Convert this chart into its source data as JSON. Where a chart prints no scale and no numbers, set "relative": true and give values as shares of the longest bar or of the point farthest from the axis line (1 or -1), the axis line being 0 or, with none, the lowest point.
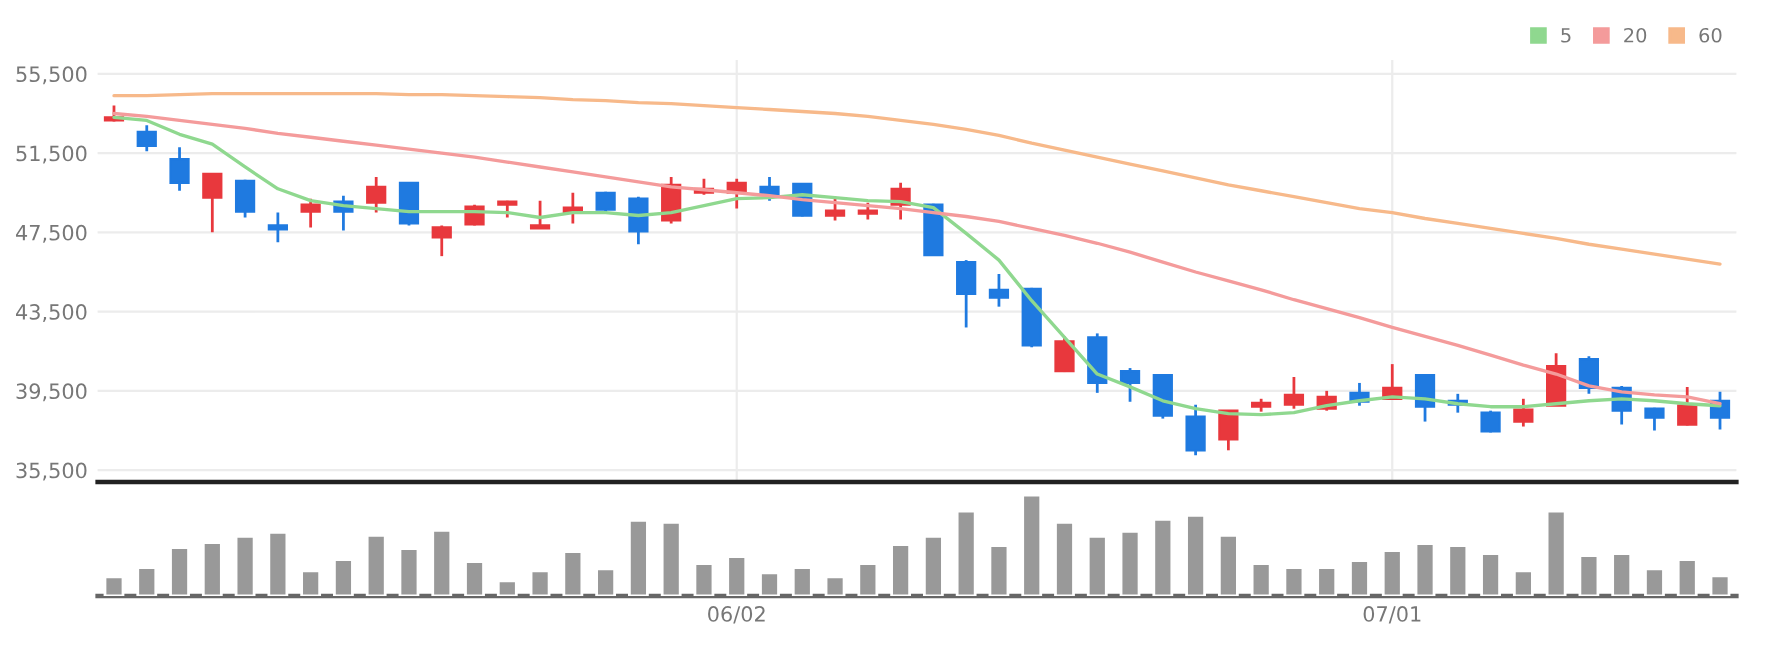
{
  "chart_data": [
    {
      "type": "candlestick",
      "categories": [
        null,
        null,
        null,
        null,
        null,
        null,
        null,
        null,
        null,
        null,
        null,
        null,
        null,
        null,
        null,
        null,
        null,
        null,
        null,
        null,
        null,
        null,
        null,
        null,
        null,
        null,
        null,
        null,
        null,
        null,
        null,
        null,
        null,
        null,
        null,
        null,
        null,
        null,
        null,
        null,
        null,
        null,
        null,
        null,
        null,
        null,
        null,
        null,
        null,
        null
      ],
      "ohlc": [
        [
          53150,
          53900,
          53100,
          53300
        ],
        [
          52570,
          52910,
          51600,
          51870
        ],
        [
          51200,
          51800,
          49600,
          50000
        ],
        [
          49250,
          50450,
          47500,
          50450
        ],
        [
          50100,
          50150,
          48250,
          48550
        ],
        [
          47850,
          48500,
          47000,
          47650
        ],
        [
          48550,
          49200,
          47750,
          48900
        ],
        [
          49050,
          49350,
          47600,
          48550
        ],
        [
          49000,
          50300,
          48500,
          49800
        ],
        [
          50000,
          50000,
          47850,
          47950
        ],
        [
          47250,
          47850,
          46300,
          47750
        ],
        [
          47900,
          48900,
          47850,
          48800
        ],
        [
          48900,
          49100,
          48250,
          49050
        ],
        [
          47700,
          49100,
          47700,
          47850
        ],
        [
          48500,
          49500,
          47950,
          48750
        ],
        [
          49500,
          49550,
          48500,
          48650
        ],
        [
          49200,
          49300,
          46900,
          47550
        ],
        [
          48100,
          50300,
          47950,
          49900
        ],
        [
          49500,
          50200,
          49400,
          49700
        ],
        [
          49500,
          50200,
          48700,
          50000
        ],
        [
          49800,
          50300,
          49100,
          49400
        ],
        [
          49950,
          49950,
          48300,
          48350
        ],
        [
          48350,
          49200,
          48100,
          48600
        ],
        [
          48450,
          49000,
          48150,
          48600
        ],
        [
          48900,
          50000,
          48150,
          49700
        ],
        [
          48900,
          48950,
          46350,
          46350
        ],
        [
          46000,
          46100,
          42700,
          44400
        ],
        [
          44600,
          45400,
          43750,
          44200
        ],
        [
          44650,
          44700,
          41700,
          41800
        ],
        [
          40500,
          42250,
          40450,
          42000
        ],
        [
          42200,
          42400,
          39400,
          39900
        ],
        [
          40500,
          40650,
          38950,
          39900
        ],
        [
          40300,
          40350,
          38100,
          38250
        ],
        [
          38200,
          38800,
          36250,
          36500
        ],
        [
          37050,
          38500,
          36500,
          38500
        ],
        [
          38700,
          39100,
          38450,
          38900
        ],
        [
          38800,
          40200,
          38600,
          39300
        ],
        [
          38600,
          39500,
          38500,
          39200
        ],
        [
          39400,
          39900,
          38750,
          38950
        ],
        [
          39100,
          40850,
          39100,
          39650
        ],
        [
          40300,
          40300,
          37950,
          38700
        ],
        [
          39000,
          39350,
          38400,
          38800
        ],
        [
          38400,
          38500,
          37400,
          37450
        ],
        [
          37950,
          39100,
          37700,
          38550
        ],
        [
          38750,
          41400,
          38750,
          40750
        ],
        [
          41100,
          41250,
          39350,
          39650
        ],
        [
          39650,
          39750,
          37800,
          38500
        ],
        [
          38600,
          38650,
          37500,
          38150
        ],
        [
          37800,
          39700,
          37750,
          38750
        ],
        [
          39000,
          39450,
          37550,
          38150
        ]
      ],
      "colors": [
        "#e8383d",
        "#1f7ae0",
        "#1f7ae0",
        "#e8383d",
        "#1f7ae0",
        "#1f7ae0",
        "#e8383d",
        "#1f7ae0",
        "#e8383d",
        "#1f7ae0",
        "#e8383d",
        "#e8383d",
        "#e8383d",
        "#e8383d",
        "#e8383d",
        "#1f7ae0",
        "#1f7ae0",
        "#e8383d",
        "#e8383d",
        "#e8383d",
        "#1f7ae0",
        "#1f7ae0",
        "#e8383d",
        "#e8383d",
        "#e8383d",
        "#1f7ae0",
        "#1f7ae0",
        "#1f7ae0",
        "#1f7ae0",
        "#e8383d",
        "#1f7ae0",
        "#1f7ae0",
        "#1f7ae0",
        "#1f7ae0",
        "#e8383d",
        "#e8383d",
        "#e8383d",
        "#e8383d",
        "#1f7ae0",
        "#e8383d",
        "#1f7ae0",
        "#1f7ae0",
        "#1f7ae0",
        "#e8383d",
        "#e8383d",
        "#1f7ae0",
        "#1f7ae0",
        "#1f7ae0",
        "#e8383d",
        "#1f7ae0"
      ],
      "series": [
        {
          "type": "line",
          "name": "5",
          "color": "#8fd88f",
          "values": [
            53300,
            53150,
            52450,
            51950,
            50800,
            49700,
            49100,
            48850,
            48700,
            48550,
            48550,
            48550,
            48500,
            48250,
            48500,
            48500,
            48350,
            48500,
            48850,
            49200,
            49250,
            49400,
            49250,
            49100,
            49050,
            48750,
            47450,
            46100,
            44050,
            42200,
            40350,
            39700,
            39000,
            38600,
            38350,
            38300,
            38400,
            38750,
            39000,
            39200,
            39100,
            38850,
            38700,
            38700,
            38850,
            39000,
            39100,
            39000,
            38850,
            38750
          ]
        },
        {
          "type": "line",
          "name": "20",
          "color": "#f49b9b",
          "values": [
            53500,
            53350,
            53150,
            52950,
            52750,
            52500,
            52300,
            52100,
            51900,
            51700,
            51500,
            51300,
            51050,
            50800,
            50550,
            50300,
            50050,
            49800,
            49650,
            49500,
            49350,
            49150,
            49000,
            48850,
            48700,
            48500,
            48300,
            48050,
            47700,
            47350,
            46950,
            46500,
            46000,
            45500,
            45050,
            44600,
            44100,
            43650,
            43200,
            42700,
            42250,
            41800,
            41300,
            40800,
            40350,
            39750,
            39450,
            39300,
            39200,
            38850
          ]
        },
        {
          "type": "line",
          "name": "60",
          "color": "#f7b98a",
          "values": [
            54400,
            54400,
            54450,
            54500,
            54500,
            54500,
            54500,
            54500,
            54500,
            54450,
            54450,
            54400,
            54350,
            54300,
            54200,
            54150,
            54050,
            54000,
            53900,
            53800,
            53700,
            53600,
            53500,
            53350,
            53150,
            52950,
            52700,
            52400,
            52000,
            51650,
            51300,
            50950,
            50600,
            50250,
            49900,
            49600,
            49300,
            49000,
            48700,
            48500,
            48200,
            47950,
            47700,
            47450,
            47200,
            46900,
            46650,
            46400,
            46150,
            45900
          ]
        }
      ],
      "ylim": [
        34900,
        56200
      ],
      "yticks": [
        {
          "value": 35500,
          "label": "35,500"
        },
        {
          "value": 39500,
          "label": "39,500"
        },
        {
          "value": 43500,
          "label": "43,500"
        },
        {
          "value": 47500,
          "label": "47,500"
        },
        {
          "value": 51500,
          "label": "51,500"
        },
        {
          "value": 55500,
          "label": "55,500"
        }
      ],
      "grid": true,
      "legend": "top right",
      "tick_labels": "y"
    },
    {
      "type": "bar",
      "relative": true,
      "categories": [
        null,
        null,
        null,
        null,
        null,
        null,
        null,
        null,
        null,
        null,
        null,
        null,
        null,
        null,
        null,
        null,
        null,
        null,
        null,
        "06/02",
        null,
        null,
        null,
        null,
        null,
        null,
        null,
        null,
        null,
        null,
        null,
        null,
        null,
        null,
        null,
        null,
        null,
        null,
        null,
        "07/01",
        null,
        null,
        null,
        null,
        null,
        null,
        null,
        null,
        null,
        null
      ],
      "color": "#999999",
      "values": [
        0.19,
        0.28,
        0.48,
        0.53,
        0.59,
        0.63,
        0.25,
        0.36,
        0.6,
        0.47,
        0.65,
        0.34,
        0.15,
        0.25,
        0.44,
        0.27,
        0.75,
        0.73,
        0.32,
        0.39,
        0.23,
        0.28,
        0.19,
        0.32,
        0.51,
        0.59,
        0.84,
        0.5,
        1,
        0.73,
        0.59,
        0.64,
        0.76,
        0.8,
        0.6,
        0.32,
        0.28,
        0.28,
        0.35,
        0.45,
        0.52,
        0.5,
        0.42,
        0.25,
        0.84,
        0.4,
        0.42,
        0.27,
        0.36,
        0.2
      ],
      "tick_labels": "x"
    }
  ]
}
